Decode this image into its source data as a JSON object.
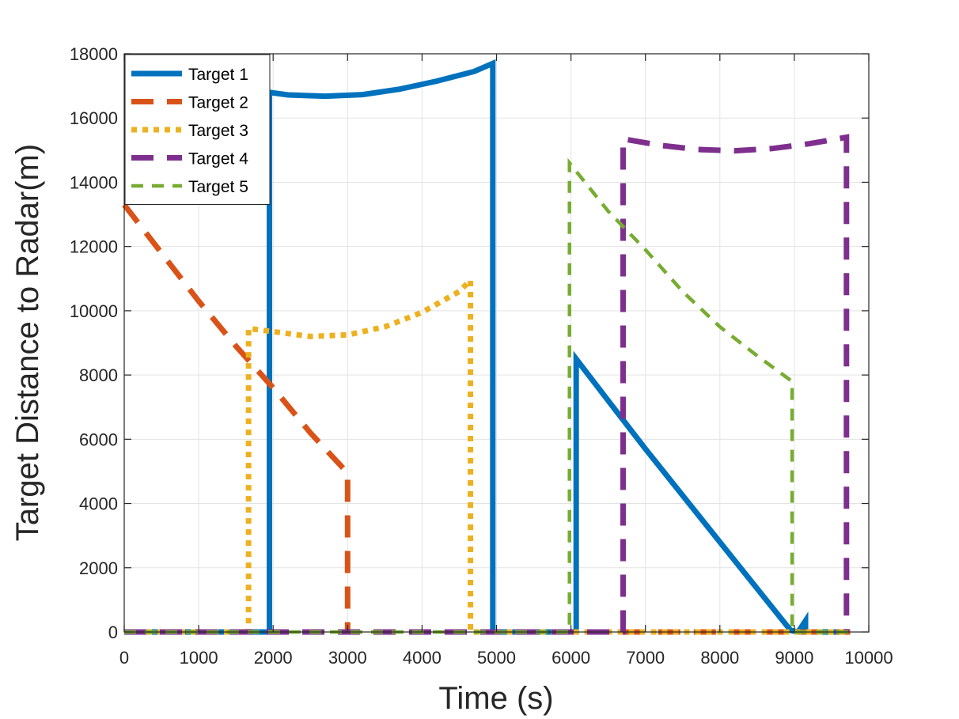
{
  "chart_data": {
    "type": "line",
    "title": "",
    "xlabel": "Time (s)",
    "ylabel": "Target Distance to Radar(m)",
    "xlim": [
      0,
      10000
    ],
    "ylim": [
      0,
      18000
    ],
    "xticks": [
      0,
      1000,
      2000,
      3000,
      4000,
      5000,
      6000,
      7000,
      8000,
      9000,
      10000
    ],
    "yticks": [
      0,
      2000,
      4000,
      6000,
      8000,
      10000,
      12000,
      14000,
      16000,
      18000
    ],
    "grid": true,
    "legend_position": "top-left",
    "series": [
      {
        "name": "Target 1",
        "color": "#0072BD",
        "style": "solid",
        "points": [
          [
            0,
            0
          ],
          [
            1950,
            0
          ],
          [
            1950,
            16800
          ],
          [
            2200,
            16720
          ],
          [
            2700,
            16680
          ],
          [
            3200,
            16730
          ],
          [
            3700,
            16900
          ],
          [
            4200,
            17150
          ],
          [
            4700,
            17450
          ],
          [
            4950,
            17700
          ],
          [
            4950,
            0
          ],
          [
            6070,
            0
          ],
          [
            6070,
            8500
          ],
          [
            6600,
            6900
          ],
          [
            7000,
            5700
          ],
          [
            8000,
            2800
          ],
          [
            8950,
            50
          ],
          [
            9050,
            0
          ],
          [
            9150,
            350
          ],
          [
            9150,
            0
          ],
          [
            9750,
            0
          ]
        ]
      },
      {
        "name": "Target 2",
        "color": "#D95319",
        "style": "dashed",
        "points": [
          [
            0,
            13300
          ],
          [
            500,
            11800
          ],
          [
            1000,
            10300
          ],
          [
            1500,
            8900
          ],
          [
            2000,
            7600
          ],
          [
            2500,
            6200
          ],
          [
            3000,
            4950
          ],
          [
            3000,
            0
          ],
          [
            9750,
            0
          ]
        ]
      },
      {
        "name": "Target 3",
        "color": "#EDB120",
        "style": "dotted",
        "points": [
          [
            0,
            0
          ],
          [
            1670,
            0
          ],
          [
            1670,
            9450
          ],
          [
            2000,
            9350
          ],
          [
            2500,
            9200
          ],
          [
            3000,
            9250
          ],
          [
            3500,
            9500
          ],
          [
            4000,
            9950
          ],
          [
            4500,
            10600
          ],
          [
            4650,
            10950
          ],
          [
            4650,
            0
          ],
          [
            9750,
            0
          ]
        ]
      },
      {
        "name": "Target 4",
        "color": "#7E2F8E",
        "style": "dashed",
        "points": [
          [
            0,
            0
          ],
          [
            6700,
            0
          ],
          [
            6700,
            15350
          ],
          [
            7200,
            15150
          ],
          [
            7700,
            15020
          ],
          [
            8200,
            14980
          ],
          [
            8700,
            15050
          ],
          [
            9200,
            15200
          ],
          [
            9700,
            15400
          ],
          [
            9700,
            0
          ]
        ]
      },
      {
        "name": "Target 5",
        "color": "#77AC30",
        "style": "dashed",
        "points": [
          [
            0,
            0
          ],
          [
            5980,
            0
          ],
          [
            5980,
            14600
          ],
          [
            6500,
            13100
          ],
          [
            7000,
            11900
          ],
          [
            7500,
            10600
          ],
          [
            8000,
            9500
          ],
          [
            8500,
            8600
          ],
          [
            8970,
            7800
          ],
          [
            8970,
            0
          ],
          [
            9750,
            0
          ]
        ]
      }
    ]
  }
}
